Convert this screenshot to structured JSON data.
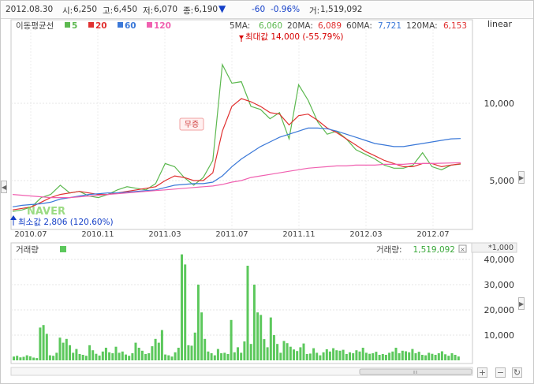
{
  "header": {
    "date": "2012.08.30",
    "open_label": "시:",
    "open": "6,250",
    "high_label": "고:",
    "high": "6,450",
    "low_label": "저:",
    "low": "6,070",
    "close_label": "종:",
    "close": "6,190",
    "change": "-60",
    "change_pct": "-0.96%",
    "volume_label": "거:",
    "volume": "1,519,092",
    "scale_mode": "linear"
  },
  "ma_legend": {
    "title": "이동평균선",
    "items": [
      {
        "label": "5",
        "color": "#5cb84f"
      },
      {
        "label": "20",
        "color": "#e03030"
      },
      {
        "label": "60",
        "color": "#3a78d8"
      },
      {
        "label": "120",
        "color": "#f060b0"
      }
    ]
  },
  "ma_values": {
    "ma5_label": "5MA:",
    "ma5": "6,060",
    "ma20_label": "20MA:",
    "ma20": "6,089",
    "ma60_label": "60MA:",
    "ma60": "7,721",
    "ma120_label": "120MA:",
    "ma120": "6,153"
  },
  "annotations": {
    "max_label": "최대값 14,000 (-55.79%)",
    "min_label": "최소값 2,806 (120.60%)",
    "bonus_issue": "무증",
    "watermark": "NAVER"
  },
  "volume_panel": {
    "title": "거래량",
    "current_label": "거래량:",
    "current_value": "1,519,092",
    "unit": "*1,000"
  },
  "colors": {
    "up": "#d60000",
    "down": "#1540c8",
    "ma5": "#5cb84f",
    "ma20": "#e03030",
    "ma60": "#3a78d8",
    "ma120": "#f060b0",
    "volume": "#5cc85c"
  },
  "chart_data": [
    {
      "type": "line",
      "title": "",
      "x_ticks": [
        "2010.07",
        "2010.11",
        "2011.03",
        "2011.07",
        "2011.11",
        "2012.03",
        "2012.07"
      ],
      "y_ticks": [
        5000,
        10000
      ],
      "scale": "linear",
      "series": [
        {
          "name": "5",
          "values": [
            3000,
            3100,
            3300,
            3900,
            4100,
            4700,
            4200,
            4300,
            4000,
            3900,
            4100,
            4400,
            4600,
            4500,
            4400,
            4800,
            6100,
            5900,
            5200,
            4700,
            5200,
            6300,
            12500,
            11300,
            11400,
            9800,
            9600,
            9000,
            9400,
            7700,
            11200,
            10200,
            8800,
            8000,
            8200,
            7700,
            7000,
            6700,
            6400,
            6000,
            5800,
            5800,
            6000,
            6800,
            5900,
            5700,
            6000,
            6060
          ]
        },
        {
          "name": "20",
          "values": [
            3100,
            3200,
            3300,
            3600,
            3900,
            4100,
            4200,
            4300,
            4200,
            4100,
            4100,
            4200,
            4300,
            4400,
            4500,
            4600,
            5000,
            5300,
            5200,
            5000,
            5000,
            5500,
            8200,
            9800,
            10300,
            10100,
            9800,
            9400,
            9300,
            8600,
            9200,
            9300,
            8900,
            8400,
            8100,
            7700,
            7300,
            6900,
            6600,
            6300,
            6100,
            5900,
            5900,
            6100,
            6100,
            5900,
            6000,
            6089
          ]
        },
        {
          "name": "60",
          "values": [
            3300,
            3400,
            3450,
            3500,
            3600,
            3800,
            3900,
            4000,
            4100,
            4150,
            4200,
            4200,
            4250,
            4300,
            4350,
            4400,
            4550,
            4700,
            4750,
            4800,
            4800,
            4900,
            5300,
            5900,
            6400,
            6800,
            7200,
            7500,
            7800,
            8000,
            8200,
            8400,
            8400,
            8350,
            8200,
            8000,
            7800,
            7600,
            7400,
            7300,
            7200,
            7200,
            7300,
            7400,
            7500,
            7600,
            7700,
            7721
          ]
        },
        {
          "name": "120",
          "values": [
            4100,
            4050,
            4000,
            3950,
            3900,
            3900,
            3900,
            3950,
            4000,
            4050,
            4100,
            4150,
            4200,
            4250,
            4300,
            4350,
            4400,
            4450,
            4500,
            4550,
            4600,
            4650,
            4750,
            4900,
            5000,
            5200,
            5300,
            5400,
            5500,
            5600,
            5700,
            5800,
            5850,
            5900,
            5950,
            5950,
            6000,
            6000,
            6000,
            6050,
            6050,
            6050,
            6100,
            6100,
            6100,
            6120,
            6140,
            6153
          ]
        }
      ],
      "ylabel": "",
      "xlabel": ""
    },
    {
      "type": "bar",
      "title": "",
      "unit": "*1,000",
      "y_ticks": [
        10000,
        20000,
        30000,
        40000
      ],
      "values": [
        1500,
        1800,
        1200,
        1400,
        2000,
        1600,
        1100,
        900,
        13000,
        14000,
        10500,
        2000,
        1800,
        3000,
        9000,
        7000,
        8500,
        6000,
        3000,
        4500,
        2500,
        2200,
        1800,
        6000,
        4000,
        2600,
        1900,
        3500,
        5000,
        3200,
        2800,
        5400,
        3000,
        3500,
        2300,
        1800,
        2800,
        7000,
        5000,
        3800,
        2500,
        2800,
        5600,
        8500,
        7000,
        12000,
        2300,
        2000,
        1500,
        3200,
        5000,
        42000,
        38000,
        6000,
        5800,
        11000,
        30000,
        19000,
        8500,
        3500,
        2800,
        2000,
        4500,
        2800,
        3000,
        2500,
        16000,
        3200,
        5200,
        3000,
        7500,
        37500,
        6500,
        30000,
        19000,
        18000,
        8400,
        5200,
        17000,
        10000,
        6500,
        3000,
        7700,
        6800,
        5400,
        4300,
        3700,
        5200,
        6700,
        2500,
        2700,
        4800,
        3000,
        2000,
        3200,
        4400,
        3500,
        4800,
        4000,
        3800,
        4200,
        2500,
        3200,
        2800,
        4000,
        3500,
        5000,
        3000,
        2600,
        2800,
        3400,
        2200,
        2500,
        2200,
        3000,
        3500,
        5000,
        2800,
        3800,
        3600,
        3200,
        4500,
        2800,
        3400,
        2200,
        2000,
        3000,
        2600,
        2200,
        2800,
        3600,
        2400,
        1800,
        2800,
        2200,
        1519
      ],
      "ylabel": "",
      "xlabel": ""
    }
  ]
}
